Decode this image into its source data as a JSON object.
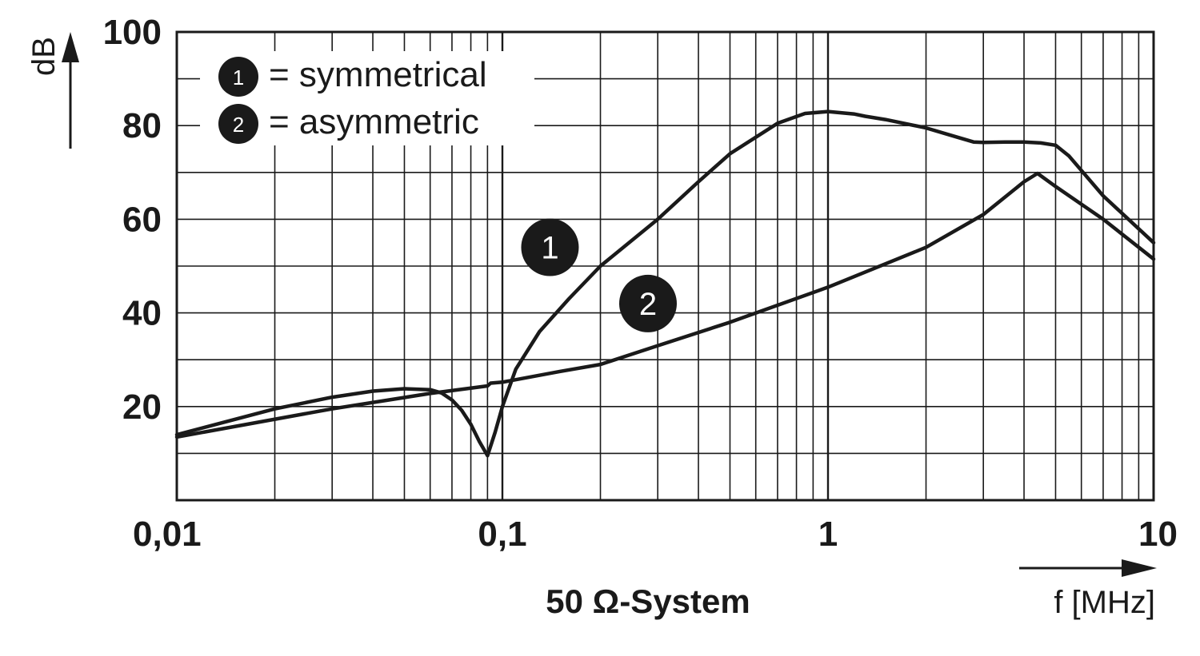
{
  "chart_data": {
    "type": "line",
    "x_scale": "log",
    "xlim": [
      0.01,
      10
    ],
    "ylim": [
      0,
      100
    ],
    "x_ticks": [
      {
        "value": 0.01,
        "label": "0,01"
      },
      {
        "value": 0.1,
        "label": "0,1"
      },
      {
        "value": 1,
        "label": "1"
      },
      {
        "value": 10,
        "label": "10"
      }
    ],
    "y_ticks": [
      {
        "value": 20,
        "label": "20"
      },
      {
        "value": 40,
        "label": "40"
      },
      {
        "value": 60,
        "label": "60"
      },
      {
        "value": 80,
        "label": "80"
      },
      {
        "value": 100,
        "label": "100"
      }
    ],
    "xlabel": "f [MHz]",
    "ylabel": "dB",
    "caption": "50 Ω-System",
    "grid": true,
    "legend_position": "top-left",
    "legend": [
      {
        "marker": "1",
        "text": "= symmetrical"
      },
      {
        "marker": "2",
        "text": "= asymmetric"
      }
    ],
    "series": [
      {
        "marker": "1",
        "x": [
          0.01,
          0.02,
          0.03,
          0.04,
          0.05,
          0.06,
          0.065,
          0.07,
          0.075,
          0.08,
          0.085,
          0.09,
          0.095,
          0.1,
          0.11,
          0.13,
          0.16,
          0.2,
          0.3,
          0.4,
          0.5,
          0.7,
          0.85,
          1.0,
          1.2,
          1.3,
          1.5,
          2.0,
          2.5,
          2.8,
          3.0,
          3.5,
          4.0,
          4.5,
          5.0,
          5.5,
          7.0,
          10.0
        ],
        "y": [
          14,
          19.5,
          22,
          23.3,
          23.8,
          23.6,
          22.9,
          21.4,
          19.2,
          16.2,
          12.5,
          9.5,
          14.5,
          20,
          28,
          36,
          43,
          50,
          60,
          68,
          74,
          80.5,
          82.6,
          83,
          82.5,
          82,
          81.3,
          79.5,
          77.5,
          76.5,
          76.4,
          76.5,
          76.5,
          76.3,
          75.8,
          73.5,
          65,
          55
        ]
      },
      {
        "marker": "2",
        "x": [
          0.01,
          0.03,
          0.06,
          0.09,
          0.092,
          0.1,
          0.15,
          0.2,
          0.3,
          0.5,
          1.0,
          2.0,
          3.0,
          4.0,
          4.4,
          5.0,
          7.0,
          10.0
        ],
        "y": [
          13.5,
          19.5,
          22.8,
          24.4,
          25,
          25.2,
          27.5,
          29,
          33,
          38,
          45.5,
          54,
          61,
          68,
          69.8,
          67,
          60,
          51.5
        ]
      }
    ],
    "annotations": [
      {
        "marker": "1",
        "x": 0.14,
        "y": 54
      },
      {
        "marker": "2",
        "x": 0.28,
        "y": 42
      }
    ]
  }
}
